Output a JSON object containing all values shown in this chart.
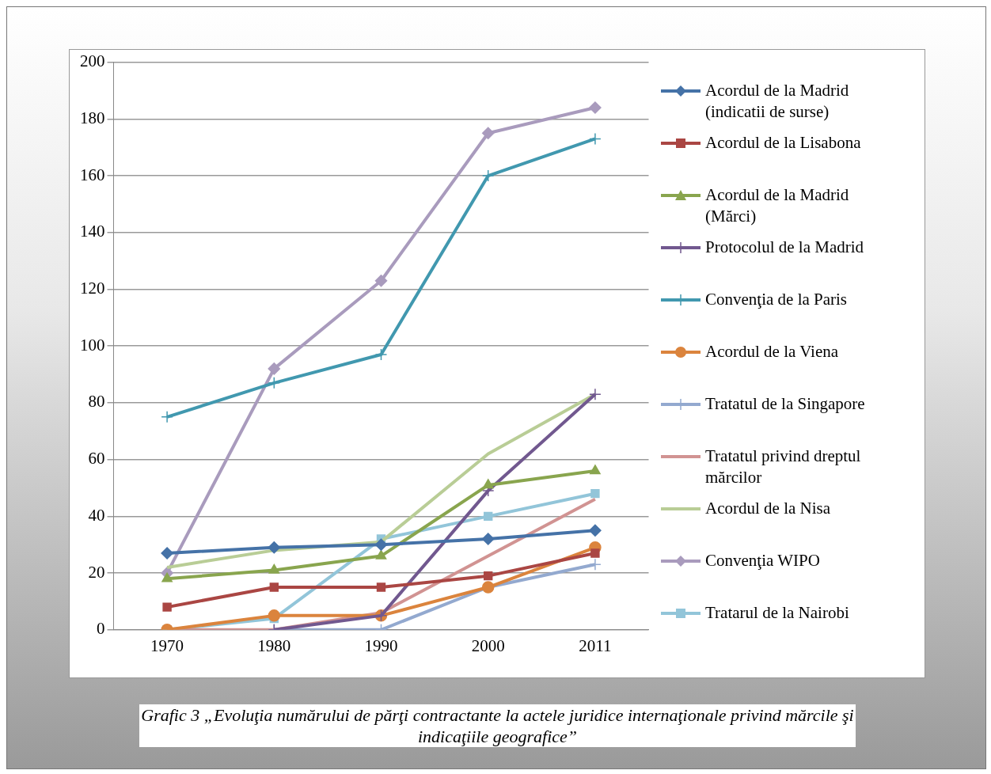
{
  "chart_data": {
    "type": "line",
    "categories": [
      "1970",
      "1980",
      "1990",
      "2000",
      "2011"
    ],
    "series": [
      {
        "name": "Acordul de la Madrid (indicatii de surse)",
        "color": "#4572a7",
        "marker": "diamond",
        "values": [
          27,
          29,
          30,
          32,
          35
        ]
      },
      {
        "name": "Acordul de la Lisabona",
        "color": "#aa4643",
        "marker": "square",
        "values": [
          8,
          15,
          15,
          19,
          27
        ]
      },
      {
        "name": "Acordul de la Madrid (Mărci)",
        "color": "#89a54e",
        "marker": "triangle",
        "values": [
          18,
          21,
          26,
          51,
          56
        ]
      },
      {
        "name": "Protocolul de la Madrid",
        "color": "#71588f",
        "marker": "cross",
        "values": [
          null,
          0,
          5,
          49,
          83
        ]
      },
      {
        "name": "Convenţia de la Paris",
        "color": "#4198af",
        "marker": "cross",
        "values": [
          75,
          87,
          97,
          160,
          173
        ]
      },
      {
        "name": "Acordul de la Viena",
        "color": "#db843d",
        "marker": "circle",
        "values": [
          0,
          5,
          5,
          15,
          29
        ]
      },
      {
        "name": "Tratatul de la Singapore",
        "color": "#93a9cf",
        "marker": "cross",
        "values": [
          null,
          0,
          0,
          15,
          23
        ]
      },
      {
        "name": "Tratatul privind dreptul mărcilor",
        "color": "#d19392",
        "marker": "none",
        "values": [
          0,
          0,
          6,
          26,
          46
        ]
      },
      {
        "name": "Acordul de la Nisa",
        "color": "#b9cd96",
        "marker": "none",
        "values": [
          22,
          28,
          31,
          62,
          83
        ]
      },
      {
        "name": "Convenţia WIPO",
        "color": "#a99bbd",
        "marker": "diamond",
        "values": [
          20,
          92,
          123,
          175,
          184
        ]
      },
      {
        "name": "Tratarul de la Nairobi",
        "color": "#92c5d9",
        "marker": "square",
        "values": [
          0,
          4,
          32,
          40,
          48
        ]
      }
    ],
    "ylim": [
      0,
      200
    ],
    "yticks": [
      0,
      20,
      40,
      60,
      80,
      100,
      120,
      140,
      160,
      180,
      200
    ],
    "grid": "y",
    "legend": "right",
    "annotations": [
      "Grafic 3 „Evoluţia numărului de părţi contractante la actele juridice internaţionale privind mărcile şi indicaţiile geografice”"
    ]
  }
}
